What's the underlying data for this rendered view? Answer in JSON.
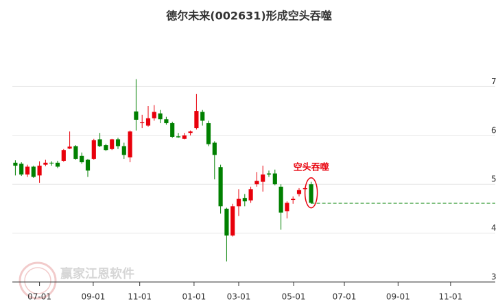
{
  "chart_data": {
    "type": "candlestick",
    "title": "德尔未来(002631)形成空头吞噬",
    "watermark": "赢家江恩软件",
    "up_color": "#e8000b",
    "down_color": "#008000",
    "xlim": [
      0,
      80
    ],
    "xticks": [
      {
        "value": 4.5,
        "label": "07-01"
      },
      {
        "value": 13.4,
        "label": "09-01"
      },
      {
        "value": 21.1,
        "label": "11-01"
      },
      {
        "value": 30.1,
        "label": "01-01"
      },
      {
        "value": 37.5,
        "label": "03-01"
      },
      {
        "value": 46.6,
        "label": "05-01"
      },
      {
        "value": 55,
        "label": "07-01"
      },
      {
        "value": 63.9,
        "label": "09-01"
      },
      {
        "value": 72.6,
        "label": "11-01"
      }
    ],
    "ylim": [
      3,
      8
    ],
    "yticks": [
      3,
      4,
      5,
      6,
      7
    ],
    "grid": true,
    "x": [
      0.5,
      1.5,
      2.5,
      3.5,
      4.5,
      5.5,
      6.5,
      7.5,
      8.5,
      9.5,
      10.5,
      11.5,
      12.5,
      13.5,
      14.5,
      15.5,
      16.5,
      17.5,
      18.5,
      19.5,
      20.5,
      21.5,
      22.5,
      23.5,
      24.5,
      25.5,
      26.5,
      27.5,
      28.5,
      29.5,
      30.5,
      31.5,
      32.5,
      33.5,
      34.5,
      35.5,
      36.5,
      37.5,
      38.5,
      39.5,
      40.5,
      41.5,
      42.5,
      43.5,
      44.5,
      45.5,
      46.5,
      47.5,
      48.5,
      49.5
    ],
    "open": [
      5.44,
      5.42,
      5.2,
      5.36,
      5.18,
      5.4,
      5.44,
      5.44,
      5.48,
      5.73,
      5.78,
      5.58,
      5.5,
      5.52,
      5.92,
      5.8,
      5.72,
      5.92,
      5.78,
      5.55,
      6.49,
      6.25,
      6.2,
      6.35,
      6.45,
      6.33,
      6.25,
      5.98,
      5.93,
      6.05,
      6.15,
      6.48,
      6.25,
      5.85,
      5.35,
      4.5,
      3.95,
      4.55,
      4.72,
      4.67,
      5.0,
      5.05,
      5.22,
      5.22,
      4.95,
      4.45,
      4.68,
      4.8,
      4.9,
      5.0
    ],
    "high": [
      5.49,
      5.45,
      5.4,
      5.38,
      5.47,
      5.5,
      5.47,
      5.48,
      5.72,
      6.08,
      5.8,
      5.65,
      5.52,
      5.93,
      6.05,
      5.83,
      5.93,
      5.95,
      5.85,
      6.1,
      7.15,
      6.42,
      6.6,
      6.62,
      6.52,
      6.38,
      6.28,
      6.05,
      6.05,
      6.1,
      6.85,
      6.52,
      6.3,
      5.88,
      5.4,
      4.52,
      4.6,
      4.9,
      4.8,
      4.95,
      5.25,
      5.38,
      5.28,
      5.3,
      5.0,
      4.65,
      4.75,
      4.92,
      4.95,
      5.05
    ],
    "low": [
      5.18,
      5.17,
      5.15,
      5.13,
      5.03,
      5.37,
      5.38,
      5.33,
      5.46,
      5.72,
      5.5,
      5.42,
      5.15,
      5.5,
      5.76,
      5.68,
      5.7,
      5.72,
      5.52,
      5.45,
      6.1,
      6.15,
      6.18,
      6.3,
      6.25,
      6.22,
      5.95,
      5.95,
      5.92,
      6.0,
      6.12,
      6.2,
      5.78,
      5.1,
      4.4,
      3.42,
      3.93,
      4.35,
      4.55,
      4.62,
      4.95,
      4.85,
      5.15,
      4.98,
      4.07,
      4.3,
      4.6,
      4.75,
      4.88,
      4.6
    ],
    "close": [
      5.38,
      5.2,
      5.36,
      5.15,
      5.38,
      5.44,
      5.43,
      5.36,
      5.7,
      5.77,
      5.52,
      5.45,
      5.28,
      5.9,
      5.78,
      5.7,
      5.92,
      5.78,
      5.6,
      6.08,
      6.32,
      6.27,
      6.35,
      6.48,
      6.33,
      6.25,
      5.97,
      5.96,
      6.0,
      6.08,
      6.5,
      6.3,
      5.82,
      5.6,
      4.55,
      3.95,
      4.55,
      4.7,
      4.65,
      4.9,
      5.07,
      5.2,
      5.2,
      5.0,
      4.42,
      4.62,
      4.7,
      4.88,
      4.92,
      4.62
    ],
    "level_line": {
      "value": 4.61,
      "color": "#008000"
    },
    "annotation": {
      "text": "空头吞噬",
      "x": 49.5,
      "y": 5.34,
      "color": "#e8000b"
    }
  }
}
